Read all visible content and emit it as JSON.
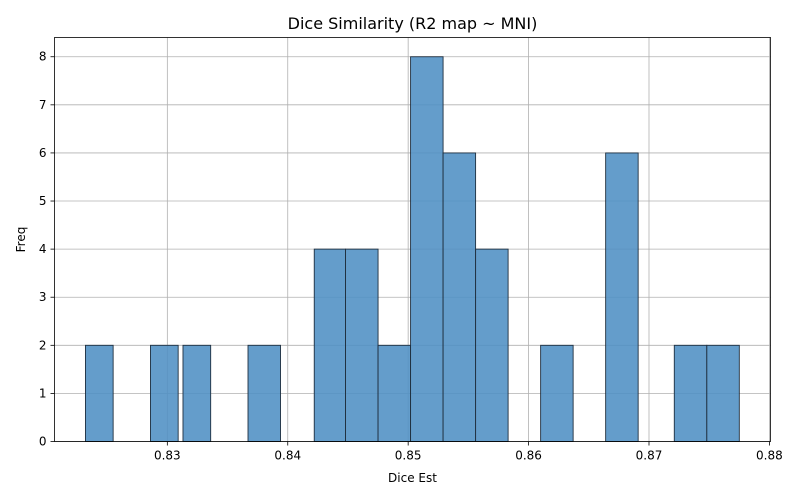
{
  "chart_data": {
    "type": "bar",
    "title": "Dice Similarity (R2 map ~ MNI)",
    "xlabel": "Dice Est",
    "ylabel": "Freq",
    "xlim": [
      0.8206,
      0.7801
    ],
    "ylim": [
      0,
      8.4
    ],
    "grid": true,
    "bar_color": "#4f8fc4",
    "bar_edge_color": "#1f2f3f",
    "bins": [
      {
        "x0": 0.8232,
        "x1": 0.8255,
        "count": 2
      },
      {
        "x0": 0.8286,
        "x1": 0.8309,
        "count": 2
      },
      {
        "x0": 0.8313,
        "x1": 0.8336,
        "count": 2
      },
      {
        "x0": 0.8367,
        "x1": 0.8394,
        "count": 2
      },
      {
        "x0": 0.8422,
        "x1": 0.8448,
        "count": 4
      },
      {
        "x0": 0.8448,
        "x1": 0.8475,
        "count": 4
      },
      {
        "x0": 0.8475,
        "x1": 0.8502,
        "count": 2
      },
      {
        "x0": 0.8502,
        "x1": 0.8529,
        "count": 8
      },
      {
        "x0": 0.8529,
        "x1": 0.8556,
        "count": 6
      },
      {
        "x0": 0.8556,
        "x1": 0.8583,
        "count": 4
      },
      {
        "x0": 0.861,
        "x1": 0.8637,
        "count": 2
      },
      {
        "x0": 0.8664,
        "x1": 0.8691,
        "count": 6
      },
      {
        "x0": 0.8721,
        "x1": 0.8748,
        "count": 2
      },
      {
        "x0": 0.8748,
        "x1": 0.8775,
        "count": 2
      }
    ],
    "x_ticks": [
      "0.83",
      "0.84",
      "0.85",
      "0.86",
      "0.87",
      "0.88"
    ],
    "y_ticks": [
      "0",
      "1",
      "2",
      "3",
      "4",
      "5",
      "6",
      "7",
      "8"
    ]
  }
}
